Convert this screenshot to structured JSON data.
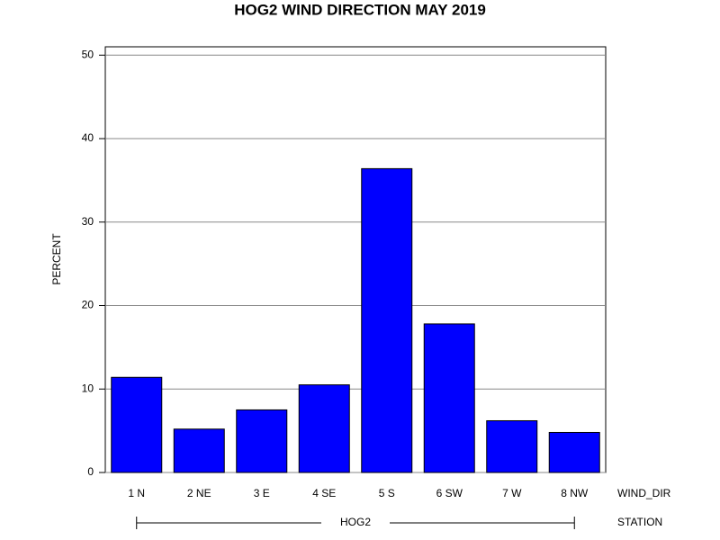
{
  "chart_data": {
    "type": "bar",
    "title": "HOG2 WIND DIRECTION MAY 2019",
    "y_label": "PERCENT",
    "x_label": "WIND_DIR",
    "group_label": "STATION",
    "group": "HOG2",
    "categories": [
      "1 N",
      "2 NE",
      "3 E",
      "4 SE",
      "5 S",
      "6 SW",
      "7 W",
      "8 NW"
    ],
    "values": [
      11.4,
      5.2,
      7.5,
      10.5,
      36.4,
      17.8,
      6.2,
      4.8
    ],
    "color": "#0000ff",
    "ylim": [
      0,
      51
    ],
    "yticks": [
      0,
      10,
      20,
      30,
      40,
      50
    ],
    "grid": true
  }
}
